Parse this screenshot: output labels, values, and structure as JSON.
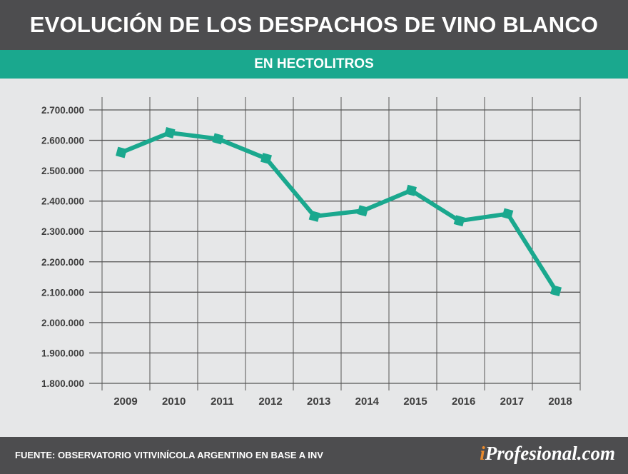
{
  "header": {
    "title": "EVOLUCIÓN DE LOS DESPACHOS DE VINO BLANCO",
    "subtitle": "EN HECTOLITROS"
  },
  "footer": {
    "source": "FUENTE: OBSERVATORIO VITIVINÍCOLA ARGENTINO EN BASE A INV",
    "brand_prefix": "i",
    "brand_name": "Profesional.com",
    "brand_prefix_color": "#e8892c"
  },
  "colors": {
    "header_bg": "#4d4d4f",
    "accent": "#1aa88e",
    "background": "#e6e7e8",
    "grid": "#555555"
  },
  "chart_data": {
    "type": "line",
    "title": "EVOLUCIÓN DE LOS DESPACHOS DE VINO BLANCO",
    "subtitle": "EN HECTOLITROS",
    "categories": [
      "2009",
      "2010",
      "2011",
      "2012",
      "2013",
      "2014",
      "2015",
      "2016",
      "2017",
      "2018"
    ],
    "values": [
      2560000,
      2625000,
      2605000,
      2540000,
      2350000,
      2368000,
      2435000,
      2335000,
      2358000,
      2105000
    ],
    "ylim": [
      1800000,
      2700000
    ],
    "yticks": [
      1800000,
      1900000,
      2000000,
      2100000,
      2200000,
      2300000,
      2400000,
      2500000,
      2600000,
      2700000
    ],
    "ytick_labels": [
      "1.800.000",
      "1.900.000",
      "2.000.000",
      "2.100.000",
      "2.200.000",
      "2.300.000",
      "2.400.000",
      "2.500.000",
      "2.600.000",
      "2.700.000"
    ],
    "grid": true,
    "line_color": "#1aa88e",
    "marker": "square"
  }
}
